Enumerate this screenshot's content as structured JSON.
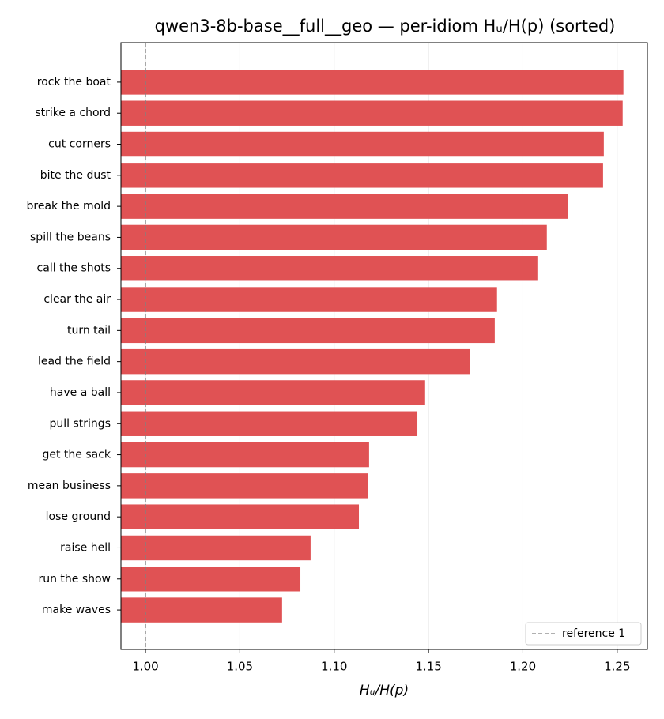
{
  "chart_data": {
    "type": "barh",
    "title": "qwen3-8b-base__full__geo — per-idiom Hᵤ/H(p) (sorted)",
    "xlabel": "Hᵤ/H(p)",
    "categories": [
      "rock the boat",
      "strike a chord",
      "cut corners",
      "bite the dust",
      "break the mold",
      "spill the beans",
      "call the shots",
      "clear the air",
      "turn tail",
      "lead the field",
      "have a ball",
      "pull strings",
      "get the sack",
      "mean business",
      "lose ground",
      "raise hell",
      "run the show",
      "make waves"
    ],
    "values": [
      1.2533,
      1.2529,
      1.2429,
      1.2425,
      1.224,
      1.2127,
      1.2077,
      1.1863,
      1.1851,
      1.1721,
      1.1482,
      1.1441,
      1.1185,
      1.1181,
      1.1131,
      1.0875,
      1.0821,
      1.0724
    ],
    "color": "#e05254",
    "xlim": [
      0.987,
      1.266
    ],
    "xticks": [
      {
        "value": 1,
        "label": "1.00"
      },
      {
        "value": 1.05,
        "label": "1.05"
      },
      {
        "value": 1.1,
        "label": "1.10"
      },
      {
        "value": 1.15,
        "label": "1.15"
      },
      {
        "value": 1.2,
        "label": "1.20"
      },
      {
        "value": 1.25,
        "label": "1.25"
      }
    ],
    "grid": true,
    "reference_line": {
      "value": 1,
      "label": "reference 1",
      "color": "#808080"
    },
    "legend": "lower right"
  }
}
